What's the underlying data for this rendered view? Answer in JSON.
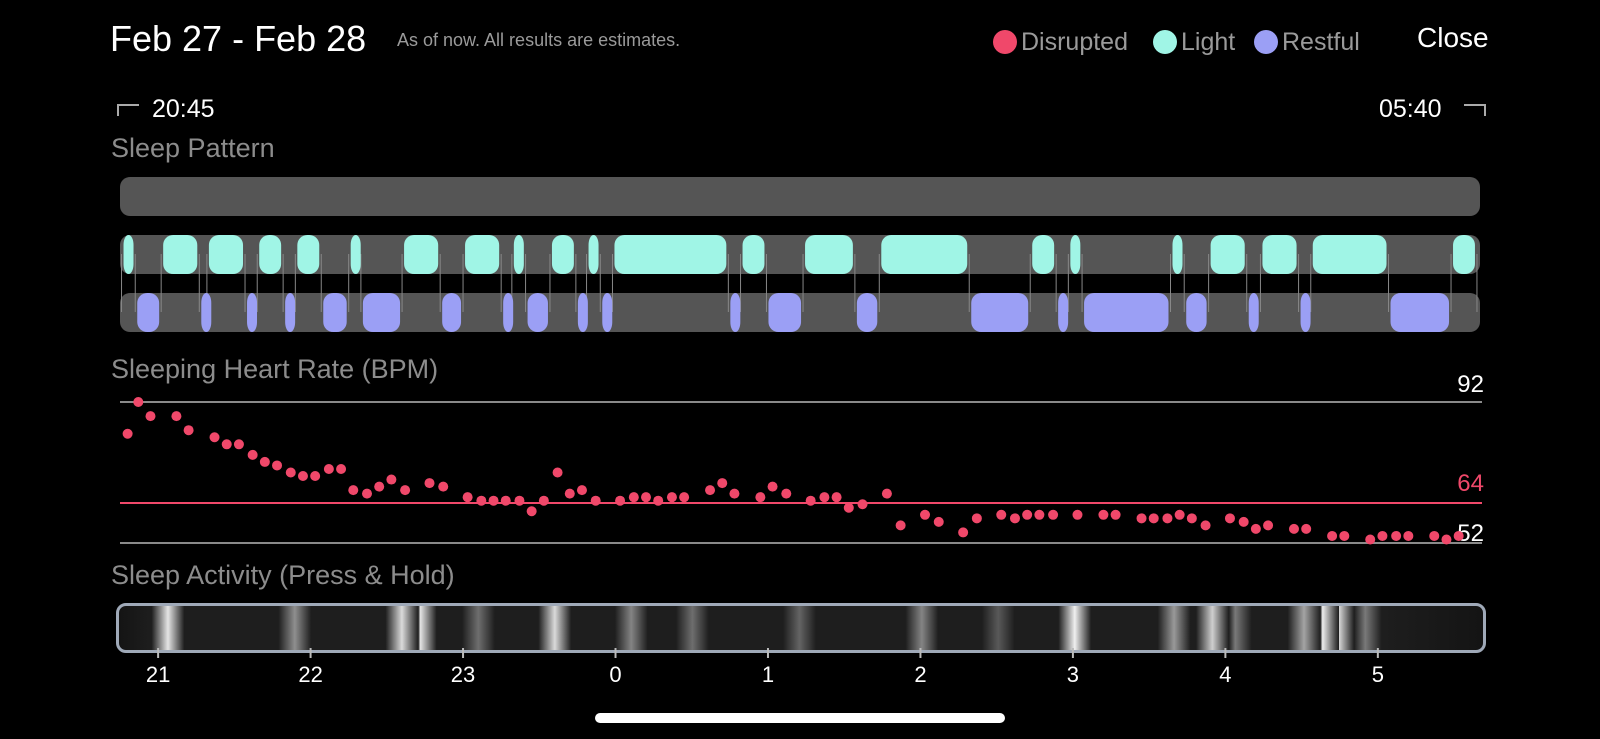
{
  "header": {
    "date_range": "Feb 27 - Feb 28",
    "note": "As of now. All results are estimates.",
    "close_label": "Close"
  },
  "legend": [
    {
      "label": "Disrupted",
      "color": "#f0486a"
    },
    {
      "label": "Light",
      "color": "#a0f5e6"
    },
    {
      "label": "Restful",
      "color": "#9b9ff5"
    }
  ],
  "times": {
    "start": "20:45",
    "end": "05:40"
  },
  "sleep_pattern": {
    "title": "Sleep Pattern",
    "colors": {
      "light": "#a0f5e6",
      "restful": "#9b9ff5",
      "track": "#555555"
    },
    "light_segments": [
      [
        20.76,
        20.85
      ],
      [
        21.02,
        21.27
      ],
      [
        21.32,
        21.57
      ],
      [
        21.65,
        21.82
      ],
      [
        21.9,
        22.07
      ],
      [
        22.25,
        22.33
      ],
      [
        22.6,
        22.85
      ],
      [
        23.0,
        23.25
      ],
      [
        23.32,
        23.41
      ],
      [
        23.57,
        23.74
      ],
      [
        23.81,
        23.9
      ],
      [
        23.98,
        24.74
      ],
      [
        24.82,
        24.99
      ],
      [
        25.23,
        25.57
      ],
      [
        25.73,
        26.32
      ],
      [
        26.72,
        26.89
      ],
      [
        26.97,
        27.06
      ],
      [
        27.64,
        27.73
      ],
      [
        27.89,
        28.14
      ],
      [
        28.23,
        28.48
      ],
      [
        28.56,
        29.07
      ],
      [
        29.48,
        29.65
      ]
    ],
    "restful_segments": [
      [
        20.85,
        21.02
      ],
      [
        21.27,
        21.32
      ],
      [
        21.57,
        21.65
      ],
      [
        21.82,
        21.9
      ],
      [
        22.07,
        22.25
      ],
      [
        22.33,
        22.6
      ],
      [
        22.85,
        23.0
      ],
      [
        23.25,
        23.32
      ],
      [
        23.41,
        23.57
      ],
      [
        23.74,
        23.81
      ],
      [
        23.9,
        23.98
      ],
      [
        24.74,
        24.82
      ],
      [
        24.99,
        25.23
      ],
      [
        25.57,
        25.73
      ],
      [
        26.32,
        26.72
      ],
      [
        26.89,
        26.97
      ],
      [
        27.06,
        27.64
      ],
      [
        27.73,
        27.89
      ],
      [
        28.14,
        28.23
      ],
      [
        28.48,
        28.56
      ],
      [
        29.07,
        29.48
      ]
    ]
  },
  "heart_rate": {
    "title": "Sleeping Heart Rate (BPM)",
    "max_label": "92",
    "avg_label": "64",
    "min_label": "52",
    "point_color": "#f0486a",
    "avg_color": "#f0486a",
    "line_color": "#8a8a8a"
  },
  "chart_data": {
    "type": "scatter",
    "xlabel": "",
    "ylabel": "BPM",
    "ylim": [
      52,
      92
    ],
    "xlim": [
      20.75,
      29.67
    ],
    "x_ticks": [
      "21",
      "22",
      "23",
      "0",
      "1",
      "2",
      "3",
      "4",
      "5"
    ],
    "avg": 64,
    "points": [
      [
        20.8,
        83
      ],
      [
        20.87,
        92
      ],
      [
        20.95,
        88
      ],
      [
        21.12,
        88
      ],
      [
        21.2,
        84
      ],
      [
        21.37,
        82
      ],
      [
        21.45,
        80
      ],
      [
        21.53,
        80
      ],
      [
        21.62,
        77
      ],
      [
        21.7,
        75
      ],
      [
        21.78,
        74
      ],
      [
        21.87,
        72
      ],
      [
        21.95,
        71
      ],
      [
        22.03,
        71
      ],
      [
        22.12,
        73
      ],
      [
        22.2,
        73
      ],
      [
        22.28,
        67
      ],
      [
        22.37,
        66
      ],
      [
        22.45,
        68
      ],
      [
        22.53,
        70
      ],
      [
        22.62,
        67
      ],
      [
        22.78,
        69
      ],
      [
        22.87,
        68
      ],
      [
        23.03,
        65
      ],
      [
        23.12,
        64
      ],
      [
        23.2,
        64
      ],
      [
        23.28,
        64
      ],
      [
        23.37,
        64
      ],
      [
        23.45,
        61
      ],
      [
        23.53,
        64
      ],
      [
        23.62,
        72
      ],
      [
        23.7,
        66
      ],
      [
        23.78,
        67
      ],
      [
        23.87,
        64
      ],
      [
        24.03,
        64
      ],
      [
        24.12,
        65
      ],
      [
        24.2,
        65
      ],
      [
        24.28,
        64
      ],
      [
        24.37,
        65
      ],
      [
        24.45,
        65
      ],
      [
        24.62,
        67
      ],
      [
        24.7,
        69
      ],
      [
        24.78,
        66
      ],
      [
        24.95,
        65
      ],
      [
        25.03,
        68
      ],
      [
        25.12,
        66
      ],
      [
        25.28,
        64
      ],
      [
        25.37,
        65
      ],
      [
        25.45,
        65
      ],
      [
        25.53,
        62
      ],
      [
        25.62,
        63
      ],
      [
        25.78,
        66
      ],
      [
        25.87,
        57
      ],
      [
        26.03,
        60
      ],
      [
        26.12,
        58
      ],
      [
        26.28,
        55
      ],
      [
        26.37,
        59
      ],
      [
        26.53,
        60
      ],
      [
        26.62,
        59
      ],
      [
        26.7,
        60
      ],
      [
        26.78,
        60
      ],
      [
        26.87,
        60
      ],
      [
        27.03,
        60
      ],
      [
        27.2,
        60
      ],
      [
        27.28,
        60
      ],
      [
        27.45,
        59
      ],
      [
        27.53,
        59
      ],
      [
        27.62,
        59
      ],
      [
        27.7,
        60
      ],
      [
        27.78,
        59
      ],
      [
        27.87,
        57
      ],
      [
        28.03,
        59
      ],
      [
        28.12,
        58
      ],
      [
        28.2,
        56
      ],
      [
        28.28,
        57
      ],
      [
        28.45,
        56
      ],
      [
        28.53,
        56
      ],
      [
        28.7,
        54
      ],
      [
        28.78,
        54
      ],
      [
        28.95,
        53
      ],
      [
        29.03,
        54
      ],
      [
        29.12,
        54
      ],
      [
        29.2,
        54
      ],
      [
        29.37,
        54
      ],
      [
        29.45,
        53
      ],
      [
        29.53,
        54
      ]
    ]
  },
  "sleep_activity": {
    "title": "Sleep Activity (Press & Hold)",
    "bright_spots": [
      [
        21.07,
        0.9
      ],
      [
        21.9,
        0.5
      ],
      [
        22.6,
        0.85
      ],
      [
        22.72,
        0.9
      ],
      [
        23.1,
        0.35
      ],
      [
        23.6,
        0.85
      ],
      [
        24.1,
        0.45
      ],
      [
        24.5,
        0.35
      ],
      [
        25.2,
        0.3
      ],
      [
        26.0,
        0.45
      ],
      [
        26.5,
        0.25
      ],
      [
        27.0,
        0.95
      ],
      [
        27.65,
        0.55
      ],
      [
        27.9,
        0.8
      ],
      [
        28.05,
        0.4
      ],
      [
        28.5,
        0.6
      ],
      [
        28.62,
        0.95
      ],
      [
        28.72,
        0.85
      ],
      [
        28.9,
        0.4
      ]
    ],
    "tick_labels": [
      "21",
      "22",
      "23",
      "0",
      "1",
      "2",
      "3",
      "4",
      "5"
    ]
  }
}
